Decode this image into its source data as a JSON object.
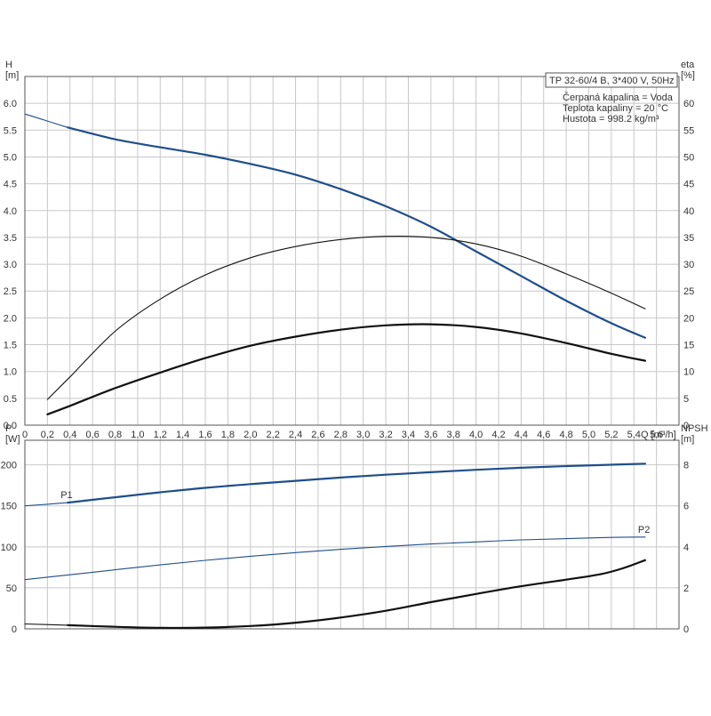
{
  "colors": {
    "blue": "#1f4e8c",
    "black": "#111111",
    "grid": "#c8c8c8",
    "frame": "#555555"
  },
  "chart_data": [
    {
      "type": "line",
      "panel": "top",
      "info": {
        "title": "TP 32-60/4 B, 3*400 V, 50Hz",
        "lines": [
          "Čerpaná kapalina = Voda",
          "Teplota kapaliny = 20 °C",
          "Hustota = 998.2 kg/m³"
        ]
      },
      "xlabel": "Q [m³/h]",
      "xlim": [
        0,
        5.8
      ],
      "xticks": [
        0,
        0.2,
        0.4,
        0.6,
        0.8,
        1.0,
        1.2,
        1.4,
        1.6,
        1.8,
        2.0,
        2.2,
        2.4,
        2.6,
        2.8,
        3.0,
        3.2,
        3.4,
        3.6,
        3.8,
        4.0,
        4.2,
        4.4,
        4.6,
        4.8,
        5.0,
        5.2,
        5.4,
        5.6
      ],
      "xtick_labels": [
        "0",
        "0,2",
        "0,4",
        "0,6",
        "0,8",
        "1,0",
        "1,2",
        "1,4",
        "1,6",
        "1,8",
        "2,0",
        "2,2",
        "2,4",
        "2,6",
        "2,8",
        "3,0",
        "3,2",
        "3,4",
        "3,6",
        "3,8",
        "4,0",
        "4,2",
        "4,4",
        "4,6",
        "4,8",
        "5,0",
        "5,2",
        "5,4",
        "5,6"
      ],
      "y_left": {
        "label_line1": "H",
        "label_line2": "[m]",
        "lim": [
          0,
          6.5
        ],
        "ticks": [
          0,
          0.5,
          1.0,
          1.5,
          2.0,
          2.5,
          3.0,
          3.5,
          4.0,
          4.5,
          5.0,
          5.5,
          6.0
        ],
        "tick_labels": [
          "0.0",
          "0.5",
          "1.0",
          "1.5",
          "2.0",
          "2.5",
          "3.0",
          "3.5",
          "4.0",
          "4.5",
          "5.0",
          "5.5",
          "6.0"
        ]
      },
      "y_right": {
        "label_line1": "eta",
        "label_line2": "[%]",
        "lim": [
          0,
          65
        ],
        "ticks": [
          0,
          5,
          10,
          15,
          20,
          25,
          30,
          35,
          40,
          45,
          50,
          55,
          60
        ],
        "tick_labels": [
          "0",
          "5",
          "10",
          "15",
          "20",
          "25",
          "30",
          "35",
          "40",
          "45",
          "50",
          "55",
          "60"
        ]
      },
      "grid": true,
      "series": [
        {
          "axis": "left",
          "color": "blue",
          "width": 1.1,
          "x": [
            0,
            0.2,
            0.38
          ],
          "y": [
            5.8,
            5.67,
            5.55
          ]
        },
        {
          "axis": "left",
          "color": "blue",
          "width": 2.2,
          "x": [
            0.38,
            0.8,
            1.2,
            1.6,
            2.0,
            2.4,
            2.8,
            3.2,
            3.6,
            4.0,
            4.4,
            4.8,
            5.2,
            5.5
          ],
          "y": [
            5.55,
            5.33,
            5.18,
            5.04,
            4.87,
            4.67,
            4.4,
            4.08,
            3.7,
            3.24,
            2.78,
            2.32,
            1.9,
            1.63
          ]
        },
        {
          "axis": "right",
          "color": "black",
          "width": 1.1,
          "x": [
            0.2,
            0.4,
            0.8,
            1.2,
            1.6,
            2.0,
            2.4,
            2.8,
            3.2,
            3.6,
            4.0,
            4.4,
            4.8,
            5.2,
            5.5
          ],
          "y": [
            4.8,
            9,
            17.5,
            23.5,
            28,
            31.2,
            33.3,
            34.6,
            35.2,
            35,
            33.8,
            31.5,
            28.2,
            24.6,
            21.7
          ]
        },
        {
          "axis": "right",
          "color": "black",
          "width": 2.2,
          "x": [
            0.2,
            0.4,
            0.8,
            1.2,
            1.6,
            2.0,
            2.4,
            2.8,
            3.2,
            3.6,
            4.0,
            4.4,
            4.8,
            5.2,
            5.5
          ],
          "y": [
            2,
            3.6,
            6.9,
            9.8,
            12.5,
            14.8,
            16.5,
            17.8,
            18.6,
            18.8,
            18.3,
            17.1,
            15.3,
            13.3,
            12
          ]
        }
      ]
    },
    {
      "type": "line",
      "panel": "bottom",
      "xlim": [
        0,
        5.8
      ],
      "xticks": [
        0,
        0.2,
        0.4,
        0.6,
        0.8,
        1.0,
        1.2,
        1.4,
        1.6,
        1.8,
        2.0,
        2.2,
        2.4,
        2.6,
        2.8,
        3.0,
        3.2,
        3.4,
        3.6,
        3.8,
        4.0,
        4.2,
        4.4,
        4.6,
        4.8,
        5.0,
        5.2,
        5.4,
        5.6
      ],
      "y_left": {
        "label_line1": "P",
        "label_line2": "[W]",
        "lim": [
          0,
          230
        ],
        "ticks": [
          0,
          50,
          100,
          150,
          200
        ],
        "tick_labels": [
          "0",
          "50",
          "100",
          "150",
          "200"
        ]
      },
      "y_right": {
        "label_line1": "NPSH",
        "label_line2": "[m]",
        "lim": [
          0,
          9.2
        ],
        "ticks": [
          0,
          2,
          4,
          6,
          8
        ],
        "tick_labels": [
          "0",
          "2",
          "4",
          "6",
          "8"
        ]
      },
      "grid": true,
      "series": [
        {
          "name": "P1",
          "axis": "left",
          "color": "blue",
          "width": 1.1,
          "x": [
            0,
            0.2,
            0.38
          ],
          "y": [
            150,
            152,
            154
          ]
        },
        {
          "name": "",
          "axis": "left",
          "color": "blue",
          "width": 2.2,
          "x": [
            0.38,
            0.8,
            1.2,
            1.6,
            2.0,
            2.4,
            2.8,
            3.2,
            3.6,
            4.0,
            4.4,
            4.8,
            5.2,
            5.5
          ],
          "y": [
            154,
            160.5,
            166.5,
            172,
            176.5,
            180.5,
            184.5,
            188,
            191,
            194,
            196.5,
            198.5,
            200.2,
            201.5
          ]
        },
        {
          "name": "P2",
          "axis": "left",
          "color": "blue",
          "width": 1.1,
          "x": [
            0,
            0.4,
            0.8,
            1.2,
            1.6,
            2.0,
            2.4,
            2.8,
            3.2,
            3.6,
            4.0,
            4.4,
            4.8,
            5.2,
            5.5
          ],
          "y": [
            60,
            66,
            72,
            78,
            83.5,
            88.5,
            93,
            97,
            100.5,
            103.5,
            106,
            108.5,
            110,
            111.5,
            112
          ]
        },
        {
          "axis": "right",
          "color": "black",
          "width": 1.1,
          "x": [
            0,
            0.38
          ],
          "y": [
            0.24,
            0.18
          ]
        },
        {
          "axis": "right",
          "color": "black",
          "width": 2.2,
          "x": [
            0.38,
            0.8,
            1.2,
            1.6,
            2.0,
            2.4,
            2.8,
            3.2,
            3.6,
            4.0,
            4.4,
            4.8,
            5.1,
            5.3,
            5.5
          ],
          "y": [
            0.18,
            0.1,
            0.05,
            0.06,
            0.14,
            0.3,
            0.55,
            0.88,
            1.3,
            1.7,
            2.08,
            2.4,
            2.66,
            2.95,
            3.35
          ]
        }
      ]
    }
  ]
}
